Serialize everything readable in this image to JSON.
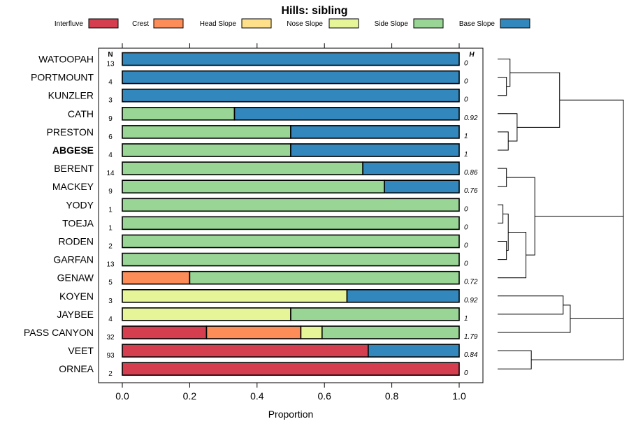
{
  "chart_data": {
    "type": "bar",
    "title": "Hills: sibling",
    "xlabel": "Proportion",
    "ylabel": "",
    "xlim": [
      0,
      1
    ],
    "x_ticks": [
      "0.0",
      "0.2",
      "0.4",
      "0.6",
      "0.8",
      "1.0"
    ],
    "x_tick_values": [
      0,
      0.2,
      0.4,
      0.6,
      0.8,
      1.0
    ],
    "n_header": "N",
    "h_header": "H",
    "legend": [
      {
        "name": "Interfluve",
        "color": "#D53E4F"
      },
      {
        "name": "Crest",
        "color": "#FC8D59"
      },
      {
        "name": "Head Slope",
        "color": "#FEE08B"
      },
      {
        "name": "Nose Slope",
        "color": "#E6F598"
      },
      {
        "name": "Side Slope",
        "color": "#99D594"
      },
      {
        "name": "Base Slope",
        "color": "#3288BD"
      }
    ],
    "categories": [
      "WATOOPAH",
      "PORTMOUNT",
      "KUNZLER",
      "CATH",
      "PRESTON",
      "ABGESE",
      "BERENT",
      "MACKEY",
      "YODY",
      "TOEJA",
      "RODEN",
      "GARFAN",
      "GENAW",
      "KOYEN",
      "JAYBEE",
      "PASS CANYON",
      "VEET",
      "ORNEA"
    ],
    "highlighted": "ABGESE",
    "n": [
      "13",
      "4",
      "3",
      "9",
      "6",
      "4",
      "14",
      "9",
      "1",
      "1",
      "2",
      "13",
      "5",
      "3",
      "4",
      "32",
      "93",
      "2"
    ],
    "h": [
      "0",
      "0",
      "0",
      "0.92",
      "1",
      "1",
      "0.86",
      "0.76",
      "0",
      "0",
      "0",
      "0",
      "0.72",
      "0.92",
      "1",
      "1.79",
      "0.84",
      "0"
    ],
    "series": [
      {
        "name": "Interfluve",
        "values": [
          0,
          0,
          0,
          0,
          0,
          0,
          0,
          0,
          0,
          0,
          0,
          0,
          0,
          0,
          0,
          0.25,
          0.73,
          1.0
        ]
      },
      {
        "name": "Crest",
        "values": [
          0,
          0,
          0,
          0,
          0,
          0,
          0,
          0,
          0,
          0,
          0,
          0,
          0.2,
          0,
          0,
          0.28,
          0,
          0
        ]
      },
      {
        "name": "Head Slope",
        "values": [
          0,
          0,
          0,
          0,
          0,
          0,
          0,
          0,
          0,
          0,
          0,
          0,
          0,
          0,
          0,
          0,
          0,
          0
        ]
      },
      {
        "name": "Nose Slope",
        "values": [
          0,
          0,
          0,
          0,
          0,
          0,
          0,
          0,
          0,
          0,
          0,
          0,
          0,
          0.667,
          0.5,
          0.063,
          0,
          0
        ]
      },
      {
        "name": "Side Slope",
        "values": [
          0,
          0,
          0,
          0.333,
          0.5,
          0.5,
          0.714,
          0.778,
          1,
          1,
          1,
          1,
          0.8,
          0,
          0.5,
          0.407,
          0,
          0
        ]
      },
      {
        "name": "Base Slope",
        "values": [
          1,
          1,
          1,
          0.667,
          0.5,
          0.5,
          0.286,
          0.222,
          0,
          0,
          0,
          0,
          0,
          0.333,
          0,
          0,
          0.27,
          0
        ]
      }
    ],
    "dendrogram": {
      "leaf_order": [
        "WATOOPAH",
        "PORTMOUNT",
        "KUNZLER",
        "CATH",
        "PRESTON",
        "ABGESE",
        "BERENT",
        "MACKEY",
        "YODY",
        "TOEJA",
        "RODEN",
        "GARFAN",
        "GENAW",
        "KOYEN",
        "JAYBEE",
        "PASS CANYON",
        "VEET",
        "ORNEA"
      ],
      "merges": [
        {
          "a": "leaf:1",
          "b": "leaf:2",
          "height": 0.05
        },
        {
          "a": "leaf:0",
          "b": "node:0",
          "height": 0.07
        },
        {
          "a": "leaf:4",
          "b": "leaf:5",
          "height": 0.06
        },
        {
          "a": "leaf:3",
          "b": "node:2",
          "height": 0.11
        },
        {
          "a": "node:1",
          "b": "node:3",
          "height": 0.35
        },
        {
          "a": "leaf:6",
          "b": "leaf:7",
          "height": 0.05
        },
        {
          "a": "leaf:8",
          "b": "leaf:9",
          "height": 0.03
        },
        {
          "a": "leaf:10",
          "b": "leaf:11",
          "height": 0.05
        },
        {
          "a": "node:6",
          "b": "node:7",
          "height": 0.06
        },
        {
          "a": "node:8",
          "b": "leaf:12",
          "height": 0.16
        },
        {
          "a": "node:5",
          "b": "node:9",
          "height": 0.21
        },
        {
          "a": "node:4",
          "b": "node:10",
          "height": 0.71
        },
        {
          "a": "leaf:13",
          "b": "leaf:14",
          "height": 0.37
        },
        {
          "a": "leaf:15",
          "b": "node:12",
          "height": 0.41
        },
        {
          "a": "leaf:16",
          "b": "leaf:17",
          "height": 0.19
        },
        {
          "a": "node:13",
          "b": "node:14",
          "height": 0.71
        },
        {
          "a": "node:11",
          "b": "node:15",
          "height": 0.71
        }
      ],
      "max_height": 0.71
    }
  }
}
